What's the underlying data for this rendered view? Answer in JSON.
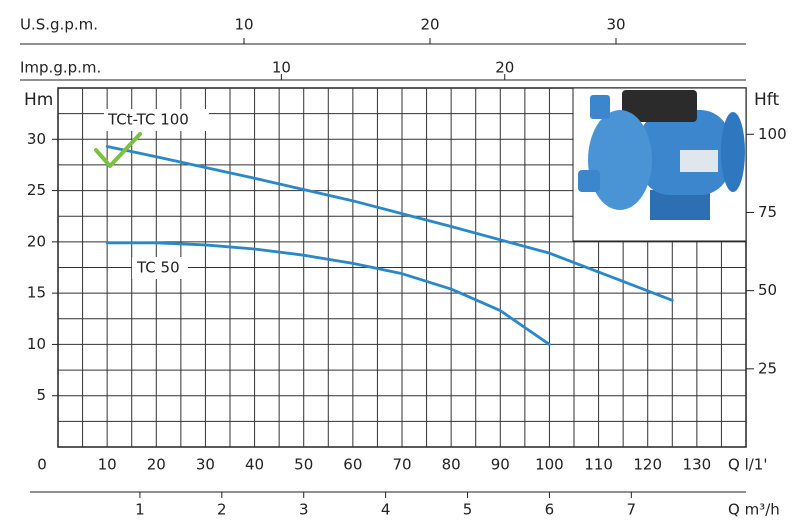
{
  "chart_data": {
    "type": "line",
    "x_label": "Q l/1'",
    "xlim": [
      0,
      140
    ],
    "xticks": [
      0,
      10,
      20,
      30,
      40,
      50,
      60,
      70,
      80,
      90,
      100,
      110,
      120,
      130
    ],
    "xgrid": [
      5,
      10,
      15,
      20,
      25,
      30,
      35,
      40,
      45,
      50,
      55,
      60,
      65,
      70,
      75,
      80,
      85,
      90,
      95,
      100,
      105,
      110,
      115,
      120,
      125,
      130,
      135
    ],
    "y_label": "Hm",
    "ylim": [
      0,
      35
    ],
    "yticks": [
      5,
      10,
      15,
      20,
      25,
      30
    ],
    "ygrid": [
      2.5,
      5,
      7.5,
      10,
      12.5,
      15,
      17.5,
      20,
      22.5,
      25,
      27.5,
      30,
      32.5
    ],
    "y2_label": "Hft",
    "y2lim": [
      0,
      114.8
    ],
    "y2ticks": [
      25,
      50,
      75,
      100
    ],
    "top_axis_1": {
      "label": "U.S.g.p.m.",
      "lim": [
        0,
        36.99
      ],
      "ticks": [
        10,
        20,
        30
      ]
    },
    "top_axis_2": {
      "label": "Imp.g.p.m.",
      "lim": [
        0,
        30.8
      ],
      "ticks": [
        10,
        20
      ]
    },
    "bottom_axis_2": {
      "label": "Q m³/h",
      "lim": [
        0,
        8.4
      ],
      "ticks": [
        1,
        2,
        3,
        4,
        5,
        6,
        7
      ]
    },
    "series": [
      {
        "name": "TCt-TC 100",
        "color": "#2a87c8",
        "x": [
          10,
          20,
          40,
          60,
          80,
          100,
          125
        ],
        "values": [
          29.3,
          28.3,
          26.2,
          24.0,
          21.5,
          18.9,
          14.3
        ]
      },
      {
        "name": "TC 50",
        "color": "#2a87c8",
        "x": [
          10,
          20,
          30,
          40,
          50,
          60,
          70,
          80,
          90,
          100
        ],
        "values": [
          19.9,
          19.9,
          19.7,
          19.3,
          18.7,
          17.9,
          16.9,
          15.4,
          13.3,
          10.0
        ]
      }
    ]
  }
}
